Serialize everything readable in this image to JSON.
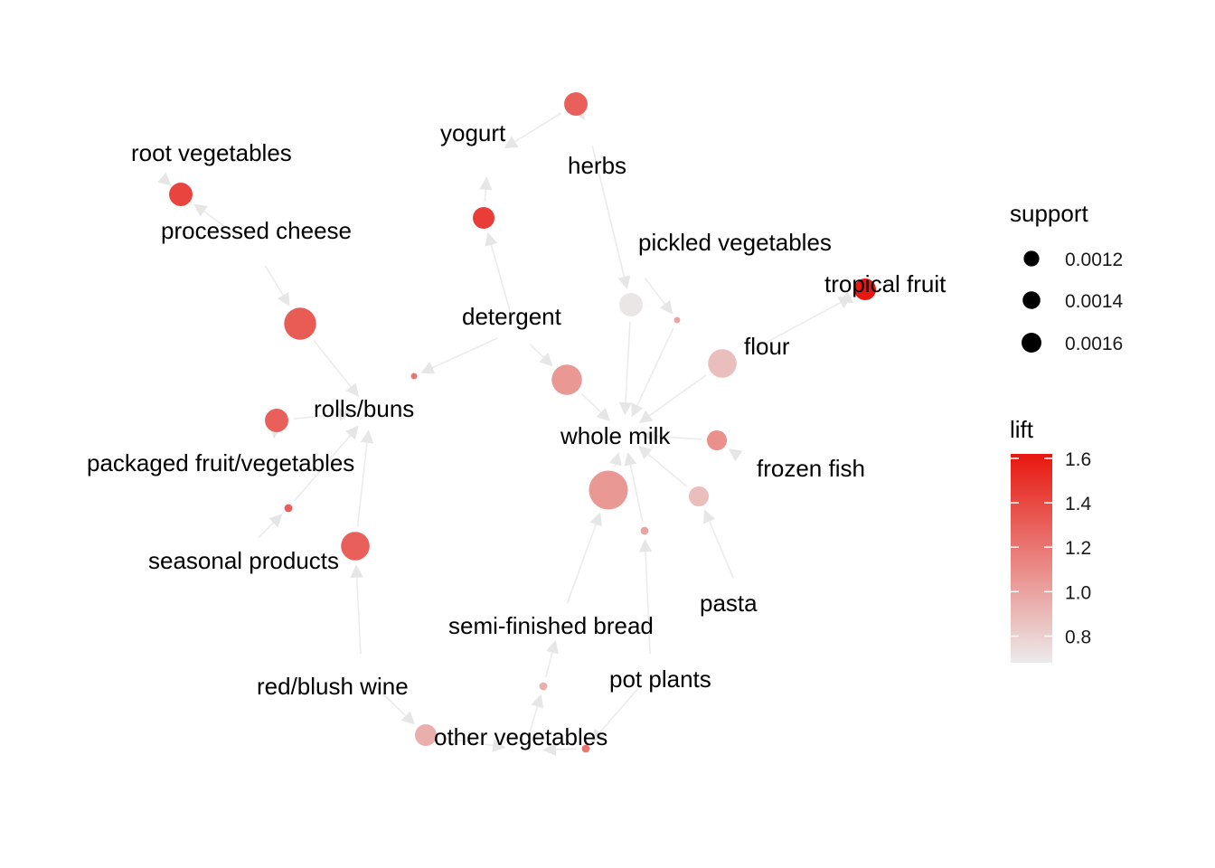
{
  "items": [
    {
      "label": "root vegetables"
    },
    {
      "label": "processed cheese"
    },
    {
      "label": "yogurt"
    },
    {
      "label": "herbs"
    },
    {
      "label": "pickled vegetables"
    },
    {
      "label": "tropical fruit"
    },
    {
      "label": "detergent"
    },
    {
      "label": "flour"
    },
    {
      "label": "rolls/buns"
    },
    {
      "label": "whole milk"
    },
    {
      "label": "packaged fruit/vegetables"
    },
    {
      "label": "frozen fish"
    },
    {
      "label": "seasonal products"
    },
    {
      "label": "pasta"
    },
    {
      "label": "semi-finished bread"
    },
    {
      "label": "pot plants"
    },
    {
      "label": "red/blush wine"
    },
    {
      "label": "other vegetables"
    }
  ],
  "rules": [
    {
      "support": 0.0011,
      "lift": 1.42
    },
    {
      "support": 0.0016,
      "lift": 1.32
    },
    {
      "support": 0.001,
      "lift": 1.45
    },
    {
      "support": 0.0011,
      "lift": 1.3
    },
    {
      "support": 0.0011,
      "lift": 0.7
    },
    {
      "support": 0.0001,
      "lift": 1.0
    },
    {
      "support": 0.001,
      "lift": 1.62
    },
    {
      "support": 0.0001,
      "lift": 1.2
    },
    {
      "support": 0.0015,
      "lift": 1.05
    },
    {
      "support": 0.0014,
      "lift": 0.88
    },
    {
      "support": 0.0011,
      "lift": 1.3
    },
    {
      "support": 0.0009,
      "lift": 1.08
    },
    {
      "support": 0.0002,
      "lift": 1.3
    },
    {
      "support": 0.0009,
      "lift": 0.88
    },
    {
      "support": 0.0014,
      "lift": 1.3
    },
    {
      "support": 0.002,
      "lift": 1.05
    },
    {
      "support": 0.0002,
      "lift": 1.0
    },
    {
      "support": 0.0002,
      "lift": 0.95
    },
    {
      "support": 0.001,
      "lift": 0.95
    },
    {
      "support": 0.0002,
      "lift": 1.2
    }
  ],
  "legend": {
    "support_title": "support",
    "support_entries": [
      {
        "label": "0.0012",
        "value": 0.0012
      },
      {
        "label": "0.0014",
        "value": 0.0014
      },
      {
        "label": "0.0016",
        "value": 0.0016
      }
    ],
    "lift_title": "lift",
    "lift_ticks": [
      {
        "label": "1.6",
        "value": 1.6
      },
      {
        "label": "1.4",
        "value": 1.4
      },
      {
        "label": "1.2",
        "value": 1.2
      },
      {
        "label": "1.0",
        "value": 1.0
      },
      {
        "label": "0.8",
        "value": 0.8
      }
    ],
    "lift_range": [
      0.68,
      1.62
    ]
  },
  "colors": {
    "low": "#ebebeb",
    "high": "#e8170f",
    "edge": "#ebebeb"
  }
}
